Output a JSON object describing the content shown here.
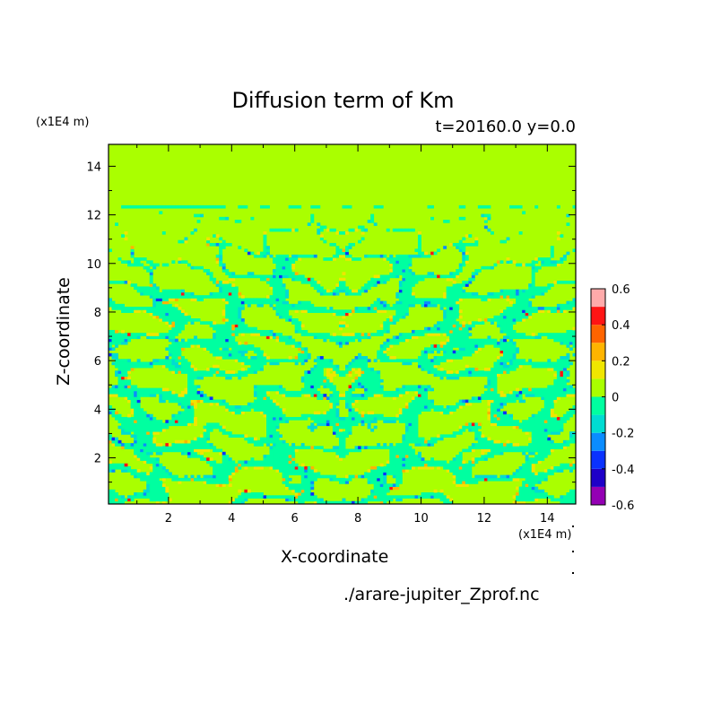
{
  "chart_data": {
    "type": "heatmap",
    "title": "Diffusion term of Km",
    "subtitle": "t=20160.0 y=0.0",
    "xlabel": "X-coordinate",
    "ylabel": "Z-coordinate",
    "x_unit": "(x1E4 m)",
    "y_unit": "(x1E4 m)",
    "xlim": [
      0.1,
      14.9
    ],
    "ylim": [
      0.1,
      14.9
    ],
    "x_ticks": [
      2,
      4,
      6,
      8,
      10,
      12,
      14
    ],
    "y_ticks": [
      2,
      4,
      6,
      8,
      10,
      12,
      14
    ],
    "x_tick_labels": [
      "2",
      "4",
      "6",
      "8",
      "10",
      "12",
      "14"
    ],
    "y_tick_labels": [
      "2",
      "4",
      "6",
      "8",
      "10",
      "12",
      "14"
    ],
    "background_level_color": "#aaff00",
    "colorbar": {
      "levels": [
        -0.6,
        -0.5,
        -0.4,
        -0.3,
        -0.2,
        -0.1,
        0,
        0.1,
        0.2,
        0.3,
        0.4,
        0.5,
        0.6
      ],
      "tick_values": [
        -0.6,
        -0.4,
        -0.2,
        0,
        0.2,
        0.4,
        0.6
      ],
      "tick_labels": [
        "-0.6",
        "-0.4",
        "-0.2",
        "0",
        "0.2",
        "0.4",
        "0.6"
      ],
      "colors": [
        "#9400b4",
        "#1e00c8",
        "#0a32ff",
        "#0a8cff",
        "#00dcd2",
        "#00ffa0",
        "#aaff00",
        "#f0e600",
        "#ffb400",
        "#ff6400",
        "#ff1414",
        "#ffaaaa"
      ]
    },
    "dominant_anomaly_band": {
      "z_range": [
        0.1,
        12.3
      ],
      "description_value": -0.1
    }
  },
  "footer": {
    "filename": "./arare-jupiter_Zprof.nc"
  }
}
